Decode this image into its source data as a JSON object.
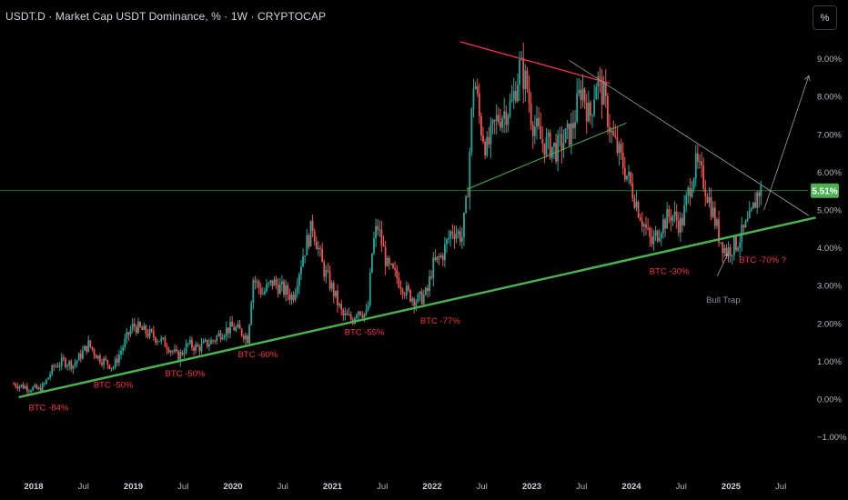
{
  "header": {
    "title": "USDT.D · Market Cap USDT Dominance, % · 1W · CRYPTOCAP"
  },
  "toolbar": {
    "percent_label": "%"
  },
  "colors": {
    "background": "#000000",
    "up": "#26a69a",
    "down": "#ef5350",
    "support_line": "#4caf50",
    "resistance_line": "#f23645",
    "annotation": "#f23645",
    "price_badge": "#4caf50"
  },
  "chart_data": {
    "type": "candlestick",
    "symbol": "USDT.D",
    "interval": "1W",
    "y_unit": "%",
    "ylim": [
      -1.3,
      9.7
    ],
    "y_ticks": [
      "9.00%",
      "8.00%",
      "7.00%",
      "6.00%",
      "5.00%",
      "4.00%",
      "3.00%",
      "2.00%",
      "1.00%",
      "0.00%",
      "−1.00%"
    ],
    "y_tick_values": [
      9,
      8,
      7,
      6,
      5,
      4,
      3,
      2,
      1,
      0,
      -1
    ],
    "x_range": [
      "2017-10",
      "2025-11"
    ],
    "x_ticks": [
      {
        "label": "2018",
        "t": 2018.0,
        "year": true
      },
      {
        "label": "Jul",
        "t": 2018.5,
        "year": false
      },
      {
        "label": "2019",
        "t": 2019.0,
        "year": true
      },
      {
        "label": "Jul",
        "t": 2019.5,
        "year": false
      },
      {
        "label": "2020",
        "t": 2020.0,
        "year": true
      },
      {
        "label": "Jul",
        "t": 2020.5,
        "year": false
      },
      {
        "label": "2021",
        "t": 2021.0,
        "year": true
      },
      {
        "label": "Jul",
        "t": 2021.5,
        "year": false
      },
      {
        "label": "2022",
        "t": 2022.0,
        "year": true
      },
      {
        "label": "Jul",
        "t": 2022.5,
        "year": false
      },
      {
        "label": "2023",
        "t": 2023.0,
        "year": true
      },
      {
        "label": "Jul",
        "t": 2023.5,
        "year": false
      },
      {
        "label": "2024",
        "t": 2024.0,
        "year": true
      },
      {
        "label": "Jul",
        "t": 2024.5,
        "year": false
      },
      {
        "label": "2025",
        "t": 2025.0,
        "year": true
      },
      {
        "label": "Jul",
        "t": 2025.5,
        "year": false
      }
    ],
    "current_value": 5.51,
    "current_label": "5.51%",
    "price_path": [
      [
        2017.8,
        0.4
      ],
      [
        2017.95,
        0.3
      ],
      [
        2018.05,
        0.25
      ],
      [
        2018.1,
        0.35
      ],
      [
        2018.2,
        0.85
      ],
      [
        2018.3,
        1.0
      ],
      [
        2018.4,
        0.9
      ],
      [
        2018.55,
        1.45
      ],
      [
        2018.65,
        1.1
      ],
      [
        2018.8,
        0.85
      ],
      [
        2018.95,
        1.7
      ],
      [
        2019.0,
        1.95
      ],
      [
        2019.1,
        1.8
      ],
      [
        2019.25,
        1.6
      ],
      [
        2019.35,
        1.4
      ],
      [
        2019.45,
        1.1
      ],
      [
        2019.55,
        1.45
      ],
      [
        2019.65,
        1.35
      ],
      [
        2019.8,
        1.55
      ],
      [
        2019.9,
        1.8
      ],
      [
        2020.0,
        1.9
      ],
      [
        2020.1,
        1.75
      ],
      [
        2020.15,
        1.6
      ],
      [
        2020.2,
        3.2
      ],
      [
        2020.3,
        2.8
      ],
      [
        2020.4,
        3.1
      ],
      [
        2020.5,
        2.9
      ],
      [
        2020.6,
        2.7
      ],
      [
        2020.7,
        3.8
      ],
      [
        2020.8,
        4.6
      ],
      [
        2020.9,
        3.5
      ],
      [
        2021.0,
        2.9
      ],
      [
        2021.1,
        2.2
      ],
      [
        2021.2,
        2.1
      ],
      [
        2021.25,
        2.4
      ],
      [
        2021.35,
        2.2
      ],
      [
        2021.4,
        4.0
      ],
      [
        2021.45,
        4.6
      ],
      [
        2021.55,
        3.5
      ],
      [
        2021.65,
        3.2
      ],
      [
        2021.75,
        2.8
      ],
      [
        2021.85,
        2.6
      ],
      [
        2021.95,
        2.8
      ],
      [
        2022.0,
        3.5
      ],
      [
        2022.1,
        3.8
      ],
      [
        2022.2,
        4.5
      ],
      [
        2022.3,
        4.3
      ],
      [
        2022.35,
        5.3
      ],
      [
        2022.42,
        8.6
      ],
      [
        2022.48,
        7.3
      ],
      [
        2022.55,
        6.6
      ],
      [
        2022.65,
        7.4
      ],
      [
        2022.8,
        7.8
      ],
      [
        2022.88,
        8.8
      ],
      [
        2022.95,
        8.3
      ],
      [
        2023.0,
        7.4
      ],
      [
        2023.1,
        6.8
      ],
      [
        2023.25,
        6.6
      ],
      [
        2023.4,
        7.1
      ],
      [
        2023.5,
        8.3
      ],
      [
        2023.58,
        7.4
      ],
      [
        2023.65,
        8.5
      ],
      [
        2023.72,
        8.0
      ],
      [
        2023.8,
        7.0
      ],
      [
        2023.9,
        6.3
      ],
      [
        2024.0,
        5.6
      ],
      [
        2024.1,
        4.8
      ],
      [
        2024.2,
        4.1
      ],
      [
        2024.3,
        4.6
      ],
      [
        2024.4,
        4.9
      ],
      [
        2024.5,
        4.6
      ],
      [
        2024.6,
        5.8
      ],
      [
        2024.65,
        6.2
      ],
      [
        2024.72,
        5.8
      ],
      [
        2024.8,
        5.1
      ],
      [
        2024.88,
        4.3
      ],
      [
        2024.95,
        3.9
      ],
      [
        2025.05,
        4.1
      ],
      [
        2025.12,
        4.4
      ],
      [
        2025.2,
        4.8
      ],
      [
        2025.27,
        5.5
      ],
      [
        2025.31,
        5.51
      ]
    ],
    "trendlines": [
      {
        "name": "long-term-support",
        "color": "#4caf50",
        "width": 2.5,
        "from": [
          2017.85,
          0.05
        ],
        "to": [
          2025.85,
          4.8
        ]
      },
      {
        "name": "upper-resistance",
        "color": "#f23645",
        "width": 1.3,
        "from": [
          2022.28,
          9.45
        ],
        "to": [
          2023.78,
          8.35
        ]
      },
      {
        "name": "channel-top",
        "color": "#9aa0a6",
        "width": 0.8,
        "from": [
          2023.38,
          8.95
        ],
        "to": [
          2025.78,
          4.85
        ]
      },
      {
        "name": "triangle-low",
        "color": "#4caf50",
        "width": 1.0,
        "from": [
          2022.35,
          5.55
        ],
        "to": [
          2023.95,
          7.3
        ]
      },
      {
        "name": "projection-arrow",
        "color": "#9aa0a6",
        "width": 0.8,
        "from": [
          2025.33,
          5.0
        ],
        "to": [
          2025.78,
          8.55
        ]
      },
      {
        "name": "bull-trap-arrow",
        "color": "#9aa0a6",
        "width": 0.8,
        "from": [
          2024.86,
          3.25
        ],
        "to": [
          2024.97,
          3.85
        ]
      }
    ],
    "horizontal_line": {
      "value": 5.51,
      "color": "#4caf50"
    },
    "annotations": [
      {
        "text": "BTC -84%",
        "t": 2017.95,
        "v": -0.3,
        "color": "red"
      },
      {
        "text": "BTC -50%",
        "t": 2018.6,
        "v": 0.3,
        "color": "red"
      },
      {
        "text": "BTC -50%",
        "t": 2019.32,
        "v": 0.6,
        "color": "red"
      },
      {
        "text": "BTC -60%",
        "t": 2020.05,
        "v": 1.1,
        "color": "red"
      },
      {
        "text": "BTC -55%",
        "t": 2021.12,
        "v": 1.7,
        "color": "red"
      },
      {
        "text": "BTC -77%",
        "t": 2021.88,
        "v": 2.0,
        "color": "red"
      },
      {
        "text": "BTC -30%",
        "t": 2024.18,
        "v": 3.3,
        "color": "red"
      },
      {
        "text": "BTC  -70% ?",
        "t": 2025.08,
        "v": 3.6,
        "color": "red"
      },
      {
        "text": "Bull Trap",
        "t": 2024.75,
        "v": 2.55,
        "color": "gray"
      }
    ]
  }
}
